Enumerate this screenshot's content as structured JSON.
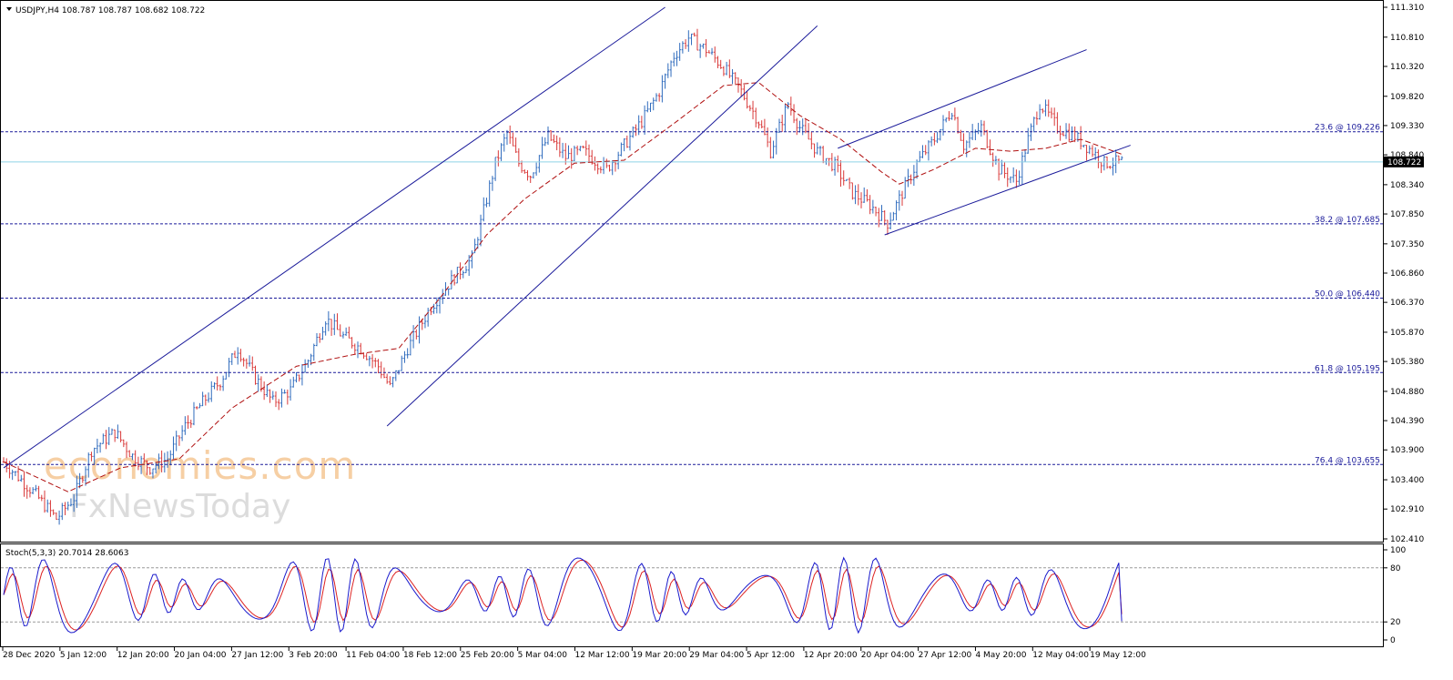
{
  "header": {
    "symbol_line": "USDJPY,H4  108.787 108.787 108.682 108.722"
  },
  "watermark": {
    "line1": "economies.com",
    "line2": "FxNewsToday"
  },
  "colors": {
    "up": "#2f6bbd",
    "down": "#d93a3a",
    "channel": "#1a1a9a",
    "fib": "#1a1a9a",
    "ma": "#b01010",
    "current": "#8fd3e6",
    "stoch_k": "#1a1acc",
    "stoch_d": "#dd2222"
  },
  "current_price": {
    "label": "108.722",
    "value": 108.722
  },
  "chart_data": [
    {
      "type": "candlestick",
      "instrument": "USDJPY",
      "timeframe": "H4",
      "ylim": [
        102.41,
        111.31
      ],
      "y_ticks": [
        "111.310",
        "110.810",
        "110.320",
        "109.820",
        "109.330",
        "108.840",
        "108.340",
        "107.850",
        "107.350",
        "106.860",
        "106.370",
        "105.870",
        "105.380",
        "104.880",
        "104.390",
        "103.900",
        "103.400",
        "102.910",
        "102.410"
      ],
      "x_ticks": [
        "28 Dec 2020",
        "5 Jan 12:00",
        "12 Jan 20:00",
        "20 Jan 04:00",
        "27 Jan 12:00",
        "3 Feb 20:00",
        "11 Feb 04:00",
        "18 Feb 12:00",
        "25 Feb 20:00",
        "5 Mar 04:00",
        "12 Mar 12:00",
        "19 Mar 20:00",
        "29 Mar 04:00",
        "5 Apr 12:00",
        "12 Apr 20:00",
        "20 Apr 04:00",
        "27 Apr 12:00",
        "4 May 20:00",
        "12 May 04:00",
        "19 May 12:00"
      ],
      "close_path": [
        [
          0,
          103.7
        ],
        [
          10,
          103.2
        ],
        [
          18,
          102.75
        ],
        [
          24,
          103.1
        ],
        [
          30,
          103.9
        ],
        [
          38,
          104.2
        ],
        [
          44,
          103.8
        ],
        [
          50,
          103.6
        ],
        [
          56,
          103.75
        ],
        [
          62,
          104.3
        ],
        [
          68,
          104.7
        ],
        [
          74,
          105.05
        ],
        [
          80,
          105.6
        ],
        [
          86,
          105.1
        ],
        [
          92,
          104.7
        ],
        [
          98,
          104.9
        ],
        [
          104,
          105.4
        ],
        [
          110,
          106.1
        ],
        [
          116,
          105.8
        ],
        [
          122,
          105.6
        ],
        [
          128,
          105.3
        ],
        [
          132,
          104.95
        ],
        [
          138,
          105.6
        ],
        [
          146,
          106.3
        ],
        [
          154,
          106.8
        ],
        [
          160,
          107.1
        ],
        [
          164,
          107.9
        ],
        [
          168,
          108.7
        ],
        [
          172,
          109.2
        ],
        [
          176,
          108.7
        ],
        [
          180,
          108.5
        ],
        [
          186,
          109.15
        ],
        [
          192,
          108.8
        ],
        [
          198,
          108.9
        ],
        [
          206,
          108.6
        ],
        [
          212,
          109.0
        ],
        [
          218,
          109.4
        ],
        [
          224,
          109.9
        ],
        [
          229,
          110.5
        ],
        [
          234,
          110.8
        ],
        [
          240,
          110.6
        ],
        [
          246,
          110.3
        ],
        [
          252,
          109.9
        ],
        [
          258,
          109.4
        ],
        [
          262,
          108.9
        ],
        [
          268,
          109.7
        ],
        [
          272,
          109.3
        ],
        [
          278,
          108.9
        ],
        [
          284,
          108.65
        ],
        [
          290,
          108.2
        ],
        [
          296,
          108.0
        ],
        [
          302,
          107.7
        ],
        [
          306,
          108.1
        ],
        [
          312,
          108.7
        ],
        [
          318,
          109.1
        ],
        [
          324,
          109.6
        ],
        [
          328,
          109.0
        ],
        [
          334,
          109.3
        ],
        [
          340,
          108.6
        ],
        [
          346,
          108.4
        ],
        [
          350,
          109.1
        ],
        [
          354,
          109.7
        ],
        [
          360,
          109.3
        ],
        [
          366,
          109.15
        ],
        [
          372,
          108.9
        ],
        [
          376,
          108.7
        ],
        [
          382,
          108.722
        ]
      ],
      "moving_average": [
        [
          0,
          103.7
        ],
        [
          22,
          103.2
        ],
        [
          40,
          103.6
        ],
        [
          60,
          103.75
        ],
        [
          78,
          104.6
        ],
        [
          100,
          105.3
        ],
        [
          120,
          105.5
        ],
        [
          135,
          105.6
        ],
        [
          150,
          106.5
        ],
        [
          165,
          107.5
        ],
        [
          178,
          108.1
        ],
        [
          195,
          108.7
        ],
        [
          212,
          108.75
        ],
        [
          230,
          109.4
        ],
        [
          246,
          110.0
        ],
        [
          258,
          110.05
        ],
        [
          272,
          109.5
        ],
        [
          286,
          109.1
        ],
        [
          300,
          108.55
        ],
        [
          306,
          108.35
        ],
        [
          318,
          108.6
        ],
        [
          332,
          108.95
        ],
        [
          344,
          108.9
        ],
        [
          356,
          108.95
        ],
        [
          368,
          109.1
        ],
        [
          382,
          108.85
        ]
      ],
      "channels": [
        {
          "name": "channel-1-upper",
          "from": [
            0,
            103.6
          ],
          "to": [
            226,
            111.31
          ]
        },
        {
          "name": "channel-1-lower",
          "from": [
            131,
            104.3
          ],
          "to": [
            278,
            111.0
          ]
        },
        {
          "name": "channel-2-upper",
          "from": [
            285,
            108.95
          ],
          "to": [
            370,
            110.6
          ]
        },
        {
          "name": "channel-2-lower",
          "from": [
            301,
            107.5
          ],
          "to": [
            385,
            109.0
          ]
        }
      ],
      "fib_levels": [
        {
          "label": "23.6 @ 109.226",
          "value": 109.226
        },
        {
          "label": "38.2 @ 107.685",
          "value": 107.685
        },
        {
          "label": "50.0 @ 106.440",
          "value": 106.44
        },
        {
          "label": "61.8 @ 105.195",
          "value": 105.195
        },
        {
          "label": "76.4 @ 103.655",
          "value": 103.655
        }
      ]
    },
    {
      "type": "line",
      "indicator": "Stochastic",
      "label": "Stoch(5,3,3) 20.7014 28.6063",
      "ylim": [
        0,
        100
      ],
      "y_ticks": [
        "100",
        "80",
        "20",
        "0"
      ],
      "levels": [
        80,
        20
      ],
      "k_last": 20.7014,
      "d_last": 28.6063
    }
  ]
}
